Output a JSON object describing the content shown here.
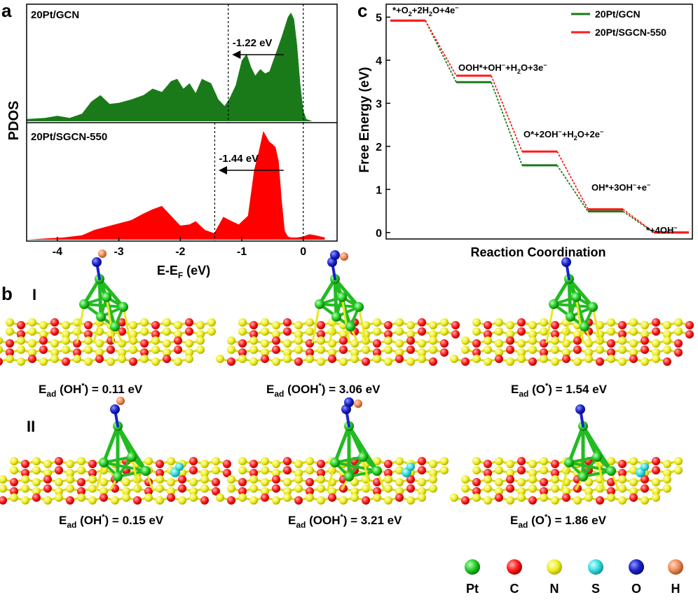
{
  "panel_labels": {
    "a": "a",
    "b": "b",
    "c": "c"
  },
  "chart_data": [
    {
      "type": "area",
      "panel": "a",
      "subplots": [
        {
          "label": "20Pt/GCN",
          "color": "#1a7a1a",
          "shift_label": "-1.22 eV",
          "d_band_center": -1.22,
          "fermi_level": 0,
          "x": [
            -4.5,
            -4.2,
            -4.0,
            -3.8,
            -3.6,
            -3.45,
            -3.3,
            -3.15,
            -3.0,
            -2.8,
            -2.6,
            -2.45,
            -2.3,
            -2.15,
            -2.05,
            -1.95,
            -1.85,
            -1.75,
            -1.65,
            -1.5,
            -1.38,
            -1.28,
            -1.2,
            -1.1,
            -1.0,
            -0.92,
            -0.85,
            -0.78,
            -0.7,
            -0.62,
            -0.55,
            -0.45,
            -0.35,
            -0.25,
            -0.2,
            -0.15,
            -0.1,
            -0.05,
            0.0,
            0.05,
            0.15,
            0.35
          ],
          "y": [
            0.02,
            0.03,
            0.05,
            0.03,
            0.07,
            0.18,
            0.24,
            0.16,
            0.17,
            0.2,
            0.24,
            0.3,
            0.27,
            0.37,
            0.39,
            0.3,
            0.35,
            0.26,
            0.39,
            0.35,
            0.2,
            0.14,
            0.21,
            0.33,
            0.56,
            0.62,
            0.5,
            0.42,
            0.48,
            0.44,
            0.46,
            0.62,
            0.78,
            0.96,
            1.0,
            0.94,
            0.7,
            0.35,
            0.1,
            0.02,
            0.0,
            0.0
          ]
        },
        {
          "label": "20Pt/SGCN-550",
          "color": "#ff0000",
          "shift_label": "-1.44 eV",
          "d_band_center": -1.44,
          "fermi_level": 0,
          "x": [
            -4.5,
            -4.2,
            -3.9,
            -3.6,
            -3.4,
            -3.2,
            -3.0,
            -2.8,
            -2.6,
            -2.45,
            -2.3,
            -2.15,
            -2.0,
            -1.85,
            -1.75,
            -1.6,
            -1.45,
            -1.3,
            -1.2,
            -1.05,
            -0.9,
            -0.8,
            -0.72,
            -0.65,
            -0.6,
            -0.55,
            -0.5,
            -0.45,
            -0.4,
            -0.35,
            -0.3,
            -0.25,
            -0.2,
            -0.1,
            0.0,
            0.1,
            0.2,
            0.35
          ],
          "y": [
            0.0,
            0.01,
            0.02,
            0.04,
            0.09,
            0.12,
            0.15,
            0.18,
            0.24,
            0.28,
            0.31,
            0.22,
            0.13,
            0.14,
            0.17,
            0.09,
            0.06,
            0.21,
            0.18,
            0.14,
            0.22,
            0.64,
            0.82,
            1.0,
            0.95,
            0.9,
            0.88,
            0.85,
            0.72,
            0.36,
            0.08,
            0.03,
            0.02,
            0.02,
            0.03,
            0.05,
            0.04,
            0.02
          ]
        }
      ],
      "xlabel": "E-E",
      "xlabel_sub": "F",
      "xlabel_unit": " (eV)",
      "ylabel": "PDOS",
      "xlim": [
        -4.5,
        0.55
      ],
      "xticks": [
        -4,
        -3,
        -2,
        -1,
        0
      ],
      "xtick_labels": [
        "-4",
        "-3",
        "-2",
        "-1",
        "0"
      ]
    },
    {
      "type": "line",
      "panel": "c",
      "xlabel": "Reaction Coordination",
      "ylabel": "Free Energy (eV)",
      "ylim": [
        -0.15,
        5.3
      ],
      "yticks": [
        0,
        1,
        2,
        3,
        4,
        5
      ],
      "ytick_labels": [
        "0",
        "1",
        "2",
        "3",
        "4",
        "5"
      ],
      "steps": [
        "*+O2+2H2O+4e-",
        "OOH*+OH-+H2O+3e-",
        "O*+2OH-+H2O+2e-",
        "OH*+3OH-+e-",
        "*+4OH-"
      ],
      "series": [
        {
          "name": "20Pt/GCN",
          "color": "#1a7a1a",
          "values": [
            4.92,
            3.49,
            1.56,
            0.49,
            0.0
          ]
        },
        {
          "name": "20Pt/SGCN-550",
          "color": "#ff1a1a",
          "values": [
            4.92,
            3.64,
            1.88,
            0.54,
            0.0
          ]
        }
      ],
      "legend_position": "top-right"
    }
  ],
  "panel_c_labels": {
    "s1": {
      "a": "*+O",
      "b": "2",
      "c": "+2H",
      "d": "2",
      "e": "O+4e",
      "f": "−"
    },
    "s2": {
      "a": "OOH*+OH",
      "b": "−",
      "c": "+H",
      "d": "2",
      "e": "O+3e",
      "f": "−"
    },
    "s3": {
      "a": "O*+2OH",
      "b": "−",
      "c": "+H",
      "d": "2",
      "e": "O+2e",
      "f": "−"
    },
    "s4": {
      "a": "OH*+3OH",
      "b": "−",
      "c": "+e",
      "d": "−"
    },
    "s5": {
      "a": "*+4OH",
      "b": "−"
    }
  },
  "panel_b": {
    "row_labels": [
      "I",
      "II"
    ],
    "structures": [
      {
        "row": "I",
        "adsorbate": "OH*",
        "ead_label": "E",
        "ead_sub": "ad",
        "species": "OH",
        "sup": "*",
        "value": "= 0.11 eV"
      },
      {
        "row": "I",
        "adsorbate": "OOH*",
        "ead_label": "E",
        "ead_sub": "ad",
        "species": "OOH",
        "sup": "*",
        "value": "= 3.06 eV"
      },
      {
        "row": "I",
        "adsorbate": "O*",
        "ead_label": "E",
        "ead_sub": "ad",
        "species": "O",
        "sup": "*",
        "value": "= 1.54 eV"
      },
      {
        "row": "II",
        "adsorbate": "OH*",
        "ead_label": "E",
        "ead_sub": "ad",
        "species": "OH",
        "sup": "*",
        "value": "= 0.15 eV"
      },
      {
        "row": "II",
        "adsorbate": "OOH*",
        "ead_label": "E",
        "ead_sub": "ad",
        "species": "OOH",
        "sup": "*",
        "value": "= 3.21 eV"
      },
      {
        "row": "II",
        "adsorbate": "O*",
        "ead_label": "E",
        "ead_sub": "ad",
        "species": "O",
        "sup": "*",
        "value": "= 1.86 eV"
      }
    ],
    "atom_legend": [
      {
        "element": "Pt",
        "color": "#22cc22"
      },
      {
        "element": "C",
        "color": "#ff1a1a"
      },
      {
        "element": "N",
        "color": "#eeee22"
      },
      {
        "element": "S",
        "color": "#33dddd"
      },
      {
        "element": "O",
        "color": "#1a22cc"
      },
      {
        "element": "H",
        "color": "#f08a55"
      }
    ]
  }
}
